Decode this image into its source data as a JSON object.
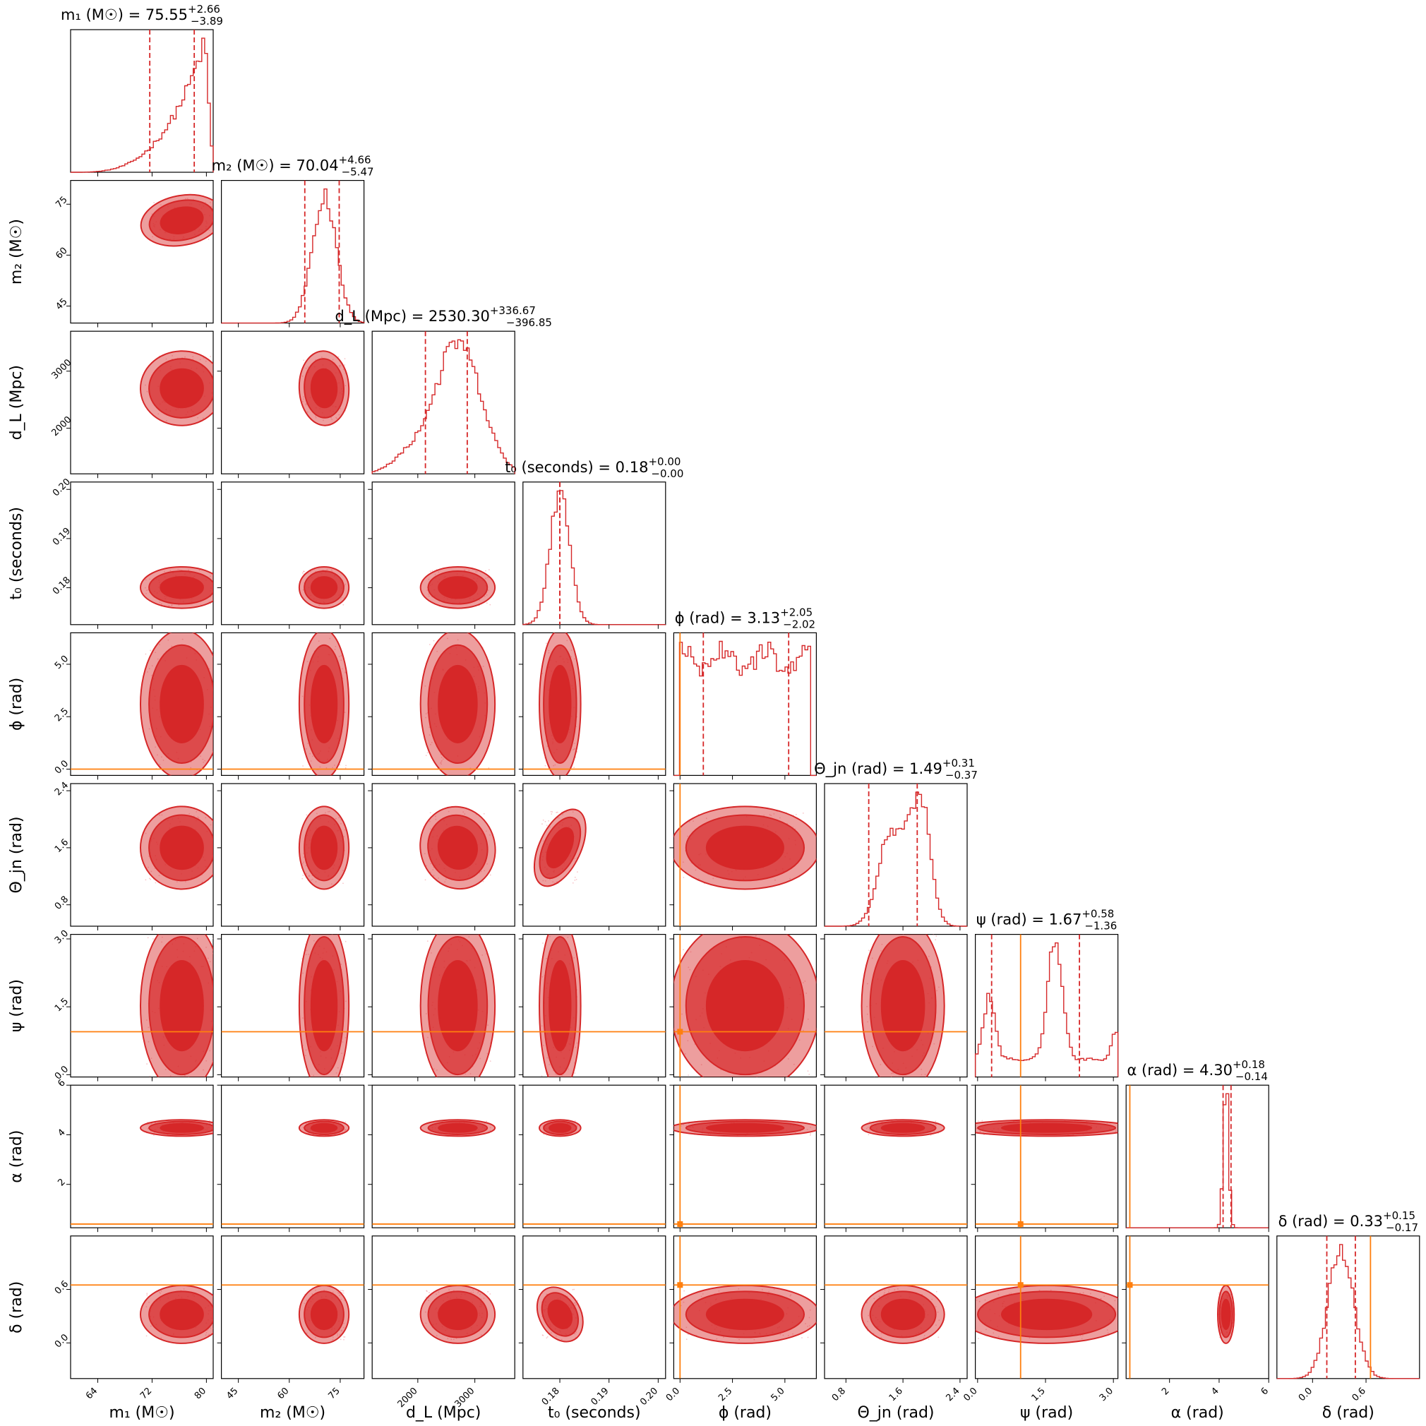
{
  "chart_data": {
    "type": "corner",
    "parameters": [
      {
        "key": "m1",
        "label": "m₁ (M☉)",
        "title": "m₁ (M☉) = 75.55",
        "median": 75.55,
        "plus": "+2.66",
        "minus": "−3.89",
        "range": [
          60,
          81
        ],
        "ticks": [
          64,
          72,
          80
        ],
        "tick_labels": [
          "64",
          "72",
          "80"
        ],
        "truth": null
      },
      {
        "key": "m2",
        "label": "m₂ (M☉)",
        "title": "m₂ (M☉) = 70.04",
        "median": 70.04,
        "plus": "+4.66",
        "minus": "−5.47",
        "range": [
          40,
          82
        ],
        "ticks": [
          45,
          60,
          75
        ],
        "tick_labels": [
          "45",
          "60",
          "75"
        ],
        "truth": null
      },
      {
        "key": "dL",
        "label": "d_L (Mpc)",
        "title": "d_L (Mpc) = 2530.30",
        "median": 2530.3,
        "plus": "+336.67",
        "minus": "−396.85",
        "range": [
          1200,
          3700
        ],
        "ticks": [
          2000,
          3000
        ],
        "tick_labels": [
          "2000",
          "3000"
        ],
        "truth": null
      },
      {
        "key": "t0",
        "label": "t₀ (seconds)",
        "title": "t₀ (seconds) = 0.18",
        "median": 0.18,
        "plus": "+0.00",
        "minus": "−0.00",
        "range": [
          0.1725,
          0.2015
        ],
        "ticks": [
          0.18,
          0.19,
          0.2
        ],
        "tick_labels": [
          "0.18",
          "0.19",
          "0.20"
        ],
        "truth": null
      },
      {
        "key": "phi",
        "label": "ϕ (rad)",
        "title": "ϕ (rad) = 3.13",
        "median": 3.13,
        "plus": "+2.05",
        "minus": "−2.02",
        "range": [
          -0.3,
          6.5
        ],
        "ticks": [
          0,
          2.5,
          5.0
        ],
        "tick_labels": [
          "0.0",
          "2.5",
          "5.0"
        ],
        "truth": 0.0
      },
      {
        "key": "theta",
        "label": "Θ_jn (rad)",
        "title": "Θ_jn (rad) = 1.49",
        "median": 1.49,
        "plus": "+0.31",
        "minus": "−0.37",
        "range": [
          0.5,
          2.5
        ],
        "ticks": [
          0.8,
          1.6,
          2.4
        ],
        "tick_labels": [
          "0.8",
          "1.6",
          "2.4"
        ],
        "truth": null
      },
      {
        "key": "psi",
        "label": "ψ (rad)",
        "title": "ψ (rad) = 1.67",
        "median": 1.67,
        "plus": "+0.58",
        "minus": "−1.36",
        "range": [
          -0.05,
          3.1
        ],
        "ticks": [
          0,
          1.5,
          3.0
        ],
        "tick_labels": [
          "0.0",
          "1.5",
          "3.0"
        ],
        "truth": 0.95
      },
      {
        "key": "alpha",
        "label": "α (rad)",
        "title": "α (rad) = 4.30",
        "median": 4.3,
        "plus": "+0.18",
        "minus": "−0.14",
        "range": [
          0.25,
          6.0
        ],
        "ticks": [
          2,
          4,
          6
        ],
        "tick_labels": [
          "2",
          "4",
          "6"
        ],
        "truth": 0.4
      },
      {
        "key": "delta",
        "label": "δ (rad)",
        "title": "δ (rad) = 0.33",
        "median": 0.33,
        "plus": "+0.15",
        "minus": "−0.17",
        "range": [
          -0.4,
          1.2
        ],
        "ticks": [
          0.0,
          0.6
        ],
        "tick_labels": [
          "0.0",
          "0.6"
        ],
        "truth": 0.65
      }
    ],
    "correlations": {
      "m1-m2": 0.55,
      "dL-theta": 0.45,
      "t0-theta": -0.45,
      "t0-delta": 0.8,
      "dL-m1": 0.05,
      "m2-dL": 0.05
    },
    "colors": {
      "posterior": "#d62728",
      "truth": "#ff7f0e"
    }
  }
}
